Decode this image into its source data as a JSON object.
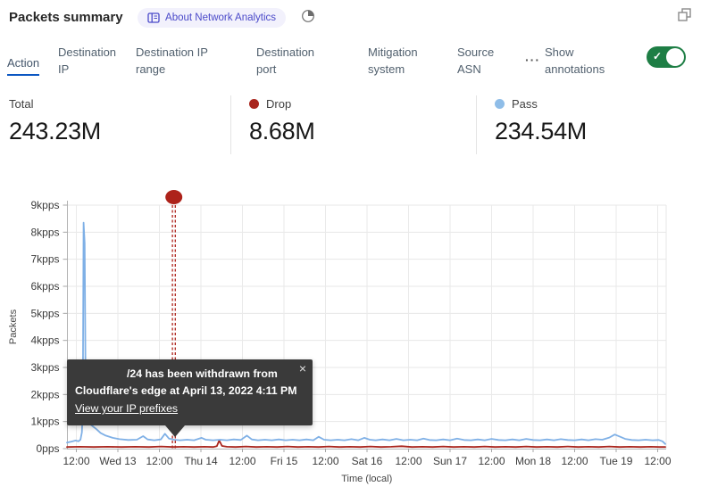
{
  "header": {
    "title": "Packets summary",
    "about_badge_label": "About Network Analytics"
  },
  "tabs": {
    "items": [
      {
        "label": "Action",
        "active": true
      },
      {
        "label": "Destination IP",
        "active": false
      },
      {
        "label": "Destination IP range",
        "active": false
      },
      {
        "label": "Destination port",
        "active": false
      },
      {
        "label": "Mitigation system",
        "active": false
      },
      {
        "label": "Source ASN",
        "active": false
      }
    ],
    "more_label": "···",
    "annotations_label": "Show annotations",
    "annotations_toggle_state": "on",
    "toggle_check": "✓"
  },
  "stats": [
    {
      "label": "Total",
      "value": "243.23M",
      "dot": null
    },
    {
      "label": "Drop",
      "value": "8.68M",
      "dot": "#a9251d"
    },
    {
      "label": "Pass",
      "value": "234.54M",
      "dot": "#8fbde8"
    }
  ],
  "tooltip": {
    "line1": "/24 has been withdrawn from",
    "line2": "Cloudflare's edge at April 13, 2022 4:11 PM",
    "link": "View your IP prefixes",
    "close": "×"
  },
  "colors": {
    "toggle_on": "#1e7e45",
    "pass_line": "#7fb0e6",
    "drop_line": "#a9251d",
    "annotation": "#ad221a",
    "active_tab_underline": "#0b57c2",
    "badge_text": "#4a49c9",
    "badge_bg": "#f2f1fc"
  },
  "chart_data": {
    "type": "line",
    "xlabel": "Time (local)",
    "ylabel": "Packets",
    "time_base": "hours since Apr 12, 2022 00:00 local",
    "x_range_hours": [
      9.3,
      182.3
    ],
    "ylim_kpps": [
      0,
      9
    ],
    "yticks": [
      {
        "label": "0pps",
        "v": 0
      },
      {
        "label": "1kpps",
        "v": 1
      },
      {
        "label": "2kpps",
        "v": 2
      },
      {
        "label": "3kpps",
        "v": 3
      },
      {
        "label": "4kpps",
        "v": 4
      },
      {
        "label": "5kpps",
        "v": 5
      },
      {
        "label": "6kpps",
        "v": 6
      },
      {
        "label": "7kpps",
        "v": 7
      },
      {
        "label": "8kpps",
        "v": 8
      },
      {
        "label": "9kpps",
        "v": 9
      }
    ],
    "xticks": [
      {
        "label": "12:00",
        "t": 12
      },
      {
        "label": "Wed 13",
        "t": 24
      },
      {
        "label": "12:00",
        "t": 36
      },
      {
        "label": "Thu 14",
        "t": 48
      },
      {
        "label": "12:00",
        "t": 60
      },
      {
        "label": "Fri 15",
        "t": 72
      },
      {
        "label": "12:00",
        "t": 84
      },
      {
        "label": "Sat 16",
        "t": 96
      },
      {
        "label": "12:00",
        "t": 108
      },
      {
        "label": "Sun 17",
        "t": 120
      },
      {
        "label": "12:00",
        "t": 132
      },
      {
        "label": "Mon 18",
        "t": 144
      },
      {
        "label": "12:00",
        "t": 156
      },
      {
        "label": "Tue 19",
        "t": 168
      },
      {
        "label": "12:00",
        "t": 180
      }
    ],
    "annotation": {
      "t": 40.18,
      "event": "IP prefix withdrawn",
      "color": "#ad221a"
    },
    "series": [
      {
        "name": "Pass",
        "color": "#7fb0e6",
        "points": [
          [
            9.3,
            0.22
          ],
          [
            10.6,
            0.26
          ],
          [
            11.8,
            0.3
          ],
          [
            12.6,
            0.27
          ],
          [
            13.2,
            0.33
          ],
          [
            13.6,
            0.6
          ],
          [
            13.85,
            1.4
          ],
          [
            14.1,
            8.35
          ],
          [
            14.4,
            7.6
          ],
          [
            14.65,
            2.6
          ],
          [
            15,
            1.25
          ],
          [
            15.5,
            0.95
          ],
          [
            16.5,
            0.85
          ],
          [
            17.8,
            0.72
          ],
          [
            19,
            0.58
          ],
          [
            20.5,
            0.48
          ],
          [
            22.5,
            0.4
          ],
          [
            24.5,
            0.35
          ],
          [
            27,
            0.32
          ],
          [
            29.5,
            0.33
          ],
          [
            31.3,
            0.46
          ],
          [
            32.6,
            0.34
          ],
          [
            34.5,
            0.31
          ],
          [
            36.4,
            0.34
          ],
          [
            37.6,
            0.55
          ],
          [
            38.8,
            0.37
          ],
          [
            40.2,
            0.33
          ],
          [
            42,
            0.31
          ],
          [
            44,
            0.33
          ],
          [
            46,
            0.31
          ],
          [
            48.2,
            0.4
          ],
          [
            49.4,
            0.33
          ],
          [
            51.5,
            0.31
          ],
          [
            53.5,
            0.33
          ],
          [
            55.5,
            0.31
          ],
          [
            57.5,
            0.34
          ],
          [
            59.5,
            0.32
          ],
          [
            61.3,
            0.48
          ],
          [
            62.7,
            0.34
          ],
          [
            64.5,
            0.31
          ],
          [
            66.5,
            0.33
          ],
          [
            68.5,
            0.31
          ],
          [
            70.5,
            0.34
          ],
          [
            72.5,
            0.31
          ],
          [
            74.5,
            0.33
          ],
          [
            76.5,
            0.31
          ],
          [
            78.5,
            0.34
          ],
          [
            80.5,
            0.31
          ],
          [
            82,
            0.44
          ],
          [
            83.6,
            0.33
          ],
          [
            85.5,
            0.31
          ],
          [
            87.5,
            0.33
          ],
          [
            89.5,
            0.31
          ],
          [
            91.5,
            0.35
          ],
          [
            93.5,
            0.31
          ],
          [
            95.2,
            0.4
          ],
          [
            96.8,
            0.33
          ],
          [
            98.5,
            0.31
          ],
          [
            100.5,
            0.34
          ],
          [
            102.5,
            0.31
          ],
          [
            104.5,
            0.36
          ],
          [
            106.5,
            0.31
          ],
          [
            108.5,
            0.33
          ],
          [
            110.5,
            0.31
          ],
          [
            112.3,
            0.37
          ],
          [
            114,
            0.32
          ],
          [
            116,
            0.31
          ],
          [
            118,
            0.34
          ],
          [
            120,
            0.31
          ],
          [
            122,
            0.37
          ],
          [
            124,
            0.32
          ],
          [
            126,
            0.31
          ],
          [
            128,
            0.34
          ],
          [
            130,
            0.31
          ],
          [
            132,
            0.36
          ],
          [
            134,
            0.32
          ],
          [
            136,
            0.31
          ],
          [
            138,
            0.34
          ],
          [
            140,
            0.31
          ],
          [
            142,
            0.36
          ],
          [
            144,
            0.32
          ],
          [
            146,
            0.31
          ],
          [
            148,
            0.34
          ],
          [
            150,
            0.31
          ],
          [
            152,
            0.35
          ],
          [
            154,
            0.32
          ],
          [
            156,
            0.31
          ],
          [
            158,
            0.34
          ],
          [
            160,
            0.31
          ],
          [
            162,
            0.35
          ],
          [
            164,
            0.33
          ],
          [
            166,
            0.41
          ],
          [
            167.6,
            0.52
          ],
          [
            169,
            0.45
          ],
          [
            170.6,
            0.36
          ],
          [
            172.5,
            0.32
          ],
          [
            174.5,
            0.31
          ],
          [
            176.5,
            0.33
          ],
          [
            178.5,
            0.31
          ],
          [
            180.3,
            0.32
          ],
          [
            181.4,
            0.27
          ],
          [
            182.2,
            0.17
          ]
        ]
      },
      {
        "name": "Drop",
        "color": "#a9251d",
        "points": [
          [
            9.3,
            0.06
          ],
          [
            13,
            0.07
          ],
          [
            17,
            0.06
          ],
          [
            21,
            0.07
          ],
          [
            25,
            0.06
          ],
          [
            29,
            0.07
          ],
          [
            33,
            0.06
          ],
          [
            36.5,
            0.08
          ],
          [
            40,
            0.06
          ],
          [
            43,
            0.07
          ],
          [
            46,
            0.06
          ],
          [
            49,
            0.07
          ],
          [
            51.5,
            0.06
          ],
          [
            52.6,
            0.09
          ],
          [
            53.3,
            0.3
          ],
          [
            54.1,
            0.1
          ],
          [
            55.5,
            0.07
          ],
          [
            58,
            0.06
          ],
          [
            61,
            0.08
          ],
          [
            64,
            0.06
          ],
          [
            67,
            0.07
          ],
          [
            70,
            0.06
          ],
          [
            73,
            0.08
          ],
          [
            76,
            0.06
          ],
          [
            79,
            0.07
          ],
          [
            82,
            0.06
          ],
          [
            85,
            0.08
          ],
          [
            88,
            0.06
          ],
          [
            91,
            0.07
          ],
          [
            94,
            0.06
          ],
          [
            97,
            0.08
          ],
          [
            100,
            0.06
          ],
          [
            103,
            0.07
          ],
          [
            106,
            0.09
          ],
          [
            109,
            0.06
          ],
          [
            112,
            0.07
          ],
          [
            115,
            0.06
          ],
          [
            118,
            0.08
          ],
          [
            121,
            0.06
          ],
          [
            124,
            0.07
          ],
          [
            127,
            0.06
          ],
          [
            130,
            0.08
          ],
          [
            133,
            0.06
          ],
          [
            136,
            0.07
          ],
          [
            139,
            0.06
          ],
          [
            142,
            0.08
          ],
          [
            145,
            0.06
          ],
          [
            148,
            0.07
          ],
          [
            151,
            0.06
          ],
          [
            154,
            0.08
          ],
          [
            157,
            0.06
          ],
          [
            160,
            0.07
          ],
          [
            163,
            0.06
          ],
          [
            166,
            0.08
          ],
          [
            169,
            0.06
          ],
          [
            172,
            0.07
          ],
          [
            175,
            0.06
          ],
          [
            178,
            0.07
          ],
          [
            180.5,
            0.06
          ],
          [
            182.2,
            0.06
          ]
        ]
      }
    ]
  }
}
